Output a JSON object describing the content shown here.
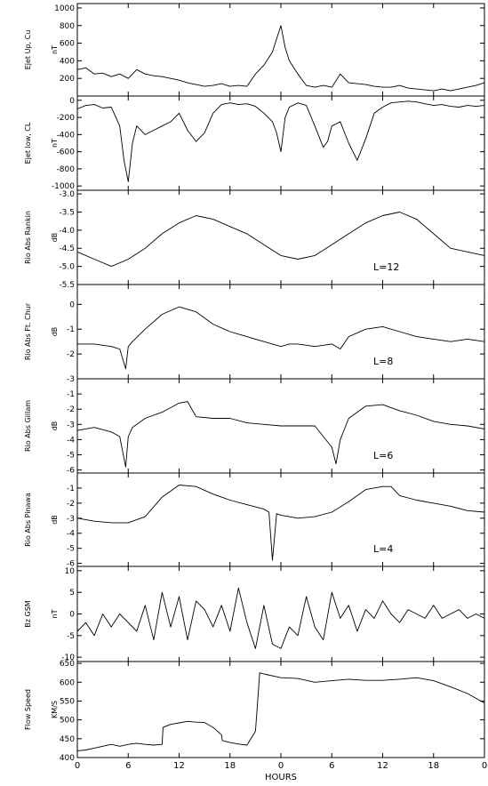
{
  "chart_data": {
    "type": "line",
    "x_axis": {
      "label": "HOURS",
      "ticks": [
        {
          "h": 0,
          "label": "0"
        },
        {
          "h": 6,
          "label": "6"
        },
        {
          "h": 12,
          "label": "12"
        },
        {
          "h": 18,
          "label": "18"
        },
        {
          "h": 24,
          "label": "0"
        },
        {
          "h": 30,
          "label": "6"
        },
        {
          "h": 36,
          "label": "12"
        },
        {
          "h": 42,
          "label": "18"
        },
        {
          "h": 48,
          "label": "0"
        }
      ],
      "range": [
        0,
        48
      ]
    },
    "panels": [
      {
        "id": "ejet-up",
        "ylabel": "Ejet Up, Cu",
        "unit": "nT",
        "ylim": [
          0,
          1050
        ],
        "yticks": [
          200,
          400,
          600,
          800,
          1000
        ],
        "annotation": "",
        "series": [
          {
            "x": [
              0,
              1,
              2,
              3,
              4,
              5,
              6,
              7,
              8,
              9,
              10,
              11,
              12,
              13,
              14,
              15,
              16,
              17,
              18,
              19,
              20,
              21,
              22,
              23,
              23.5,
              24,
              24.5,
              25,
              26,
              27,
              28,
              29,
              30,
              31,
              32,
              33,
              34,
              35,
              36,
              37,
              38,
              39,
              40,
              41,
              42,
              43,
              44,
              45,
              46,
              47,
              48
            ],
            "y": [
              300,
              320,
              250,
              260,
              220,
              250,
              200,
              300,
              250,
              230,
              220,
              200,
              180,
              150,
              130,
              110,
              120,
              140,
              110,
              120,
              110,
              250,
              350,
              500,
              650,
              800,
              550,
              400,
              250,
              120,
              100,
              120,
              100,
              250,
              150,
              140,
              130,
              110,
              100,
              100,
              120,
              90,
              80,
              70,
              60,
              80,
              60,
              80,
              100,
              120,
              150
            ]
          }
        ]
      },
      {
        "id": "ejet-low",
        "ylabel": "Ejet low, CL",
        "unit": "nT",
        "ylim": [
          -1050,
          50
        ],
        "yticks": [
          0,
          -200,
          -400,
          -600,
          -800,
          -1000
        ],
        "annotation": "",
        "series": [
          {
            "x": [
              0,
              1,
              2,
              3,
              4,
              5,
              5.5,
              6,
              6.5,
              7,
              8,
              9,
              10,
              11,
              12,
              13,
              14,
              15,
              16,
              17,
              18,
              19,
              20,
              21,
              22,
              23,
              23.5,
              24,
              24.5,
              25,
              26,
              27,
              28,
              29,
              29.5,
              30,
              31,
              32,
              33,
              34,
              35,
              36,
              37,
              38,
              39,
              40,
              41,
              42,
              43,
              44,
              45,
              46,
              47,
              48
            ],
            "y": [
              -100,
              -60,
              -50,
              -90,
              -80,
              -300,
              -700,
              -950,
              -500,
              -300,
              -400,
              -350,
              -300,
              -250,
              -150,
              -350,
              -480,
              -380,
              -150,
              -50,
              -30,
              -50,
              -40,
              -70,
              -150,
              -250,
              -380,
              -600,
              -200,
              -80,
              -30,
              -60,
              -300,
              -550,
              -480,
              -300,
              -250,
              -500,
              -700,
              -450,
              -150,
              -80,
              -30,
              -20,
              -10,
              -20,
              -40,
              -60,
              -50,
              -70,
              -80,
              -60,
              -70,
              -60
            ]
          }
        ]
      },
      {
        "id": "rio-rankin",
        "ylabel": "Rio Abs Rankin",
        "unit": "dB",
        "ylim": [
          -5.5,
          -2.9
        ],
        "yticks": [
          -3.0,
          -3.5,
          -4.0,
          -4.5,
          -5.0,
          -5.5
        ],
        "tick_labels": [
          "-3.0",
          "-3.5",
          "-4.0",
          "-4.5",
          "-5.0",
          "-5.5"
        ],
        "annotation": "L=12",
        "series": [
          {
            "x": [
              0,
              2,
              4,
              6,
              8,
              10,
              12,
              14,
              16,
              18,
              20,
              22,
              24,
              26,
              28,
              30,
              32,
              34,
              36,
              38,
              40,
              42,
              44,
              46,
              48
            ],
            "y": [
              -4.6,
              -4.8,
              -5.0,
              -4.8,
              -4.5,
              -4.1,
              -3.8,
              -3.6,
              -3.7,
              -3.9,
              -4.1,
              -4.4,
              -4.7,
              -4.8,
              -4.7,
              -4.4,
              -4.1,
              -3.8,
              -3.6,
              -3.5,
              -3.7,
              -4.1,
              -4.5,
              -4.6,
              -4.7
            ]
          }
        ]
      },
      {
        "id": "rio-churchill",
        "ylabel": "Rio Abs Ft. Chur",
        "unit": "dB",
        "ylim": [
          -3,
          0.8
        ],
        "yticks": [
          0,
          -1,
          -2,
          -3
        ],
        "annotation": "L=8",
        "series": [
          {
            "x": [
              0,
              2,
              4,
              5,
              5.7,
              6,
              6.5,
              8,
              10,
              12,
              14,
              16,
              18,
              19,
              20,
              21,
              22,
              23,
              24,
              25,
              26,
              28,
              30,
              31,
              32,
              34,
              36,
              38,
              40,
              42,
              44,
              46,
              48
            ],
            "y": [
              -1.6,
              -1.6,
              -1.7,
              -1.8,
              -2.6,
              -1.7,
              -1.5,
              -1.0,
              -0.4,
              -0.1,
              -0.3,
              -0.8,
              -1.1,
              -1.2,
              -1.3,
              -1.4,
              -1.5,
              -1.6,
              -1.7,
              -1.6,
              -1.6,
              -1.7,
              -1.6,
              -1.8,
              -1.3,
              -1.0,
              -0.9,
              -1.1,
              -1.3,
              -1.4,
              -1.5,
              -1.4,
              -1.5
            ]
          }
        ]
      },
      {
        "id": "rio-gillam",
        "ylabel": "Rio Abs Gillam",
        "unit": "dB",
        "ylim": [
          -6.2,
          0
        ],
        "yticks": [
          -1,
          -2,
          -3,
          -4,
          -5,
          -6
        ],
        "annotation": "L=6",
        "series": [
          {
            "x": [
              0,
              2,
              4,
              5,
              5.7,
              6,
              6.5,
              8,
              10,
              12,
              13,
              14,
              16,
              18,
              20,
              22,
              24,
              26,
              28,
              29,
              30,
              30.5,
              31,
              32,
              34,
              36,
              38,
              40,
              42,
              44,
              46,
              48
            ],
            "y": [
              -3.4,
              -3.2,
              -3.5,
              -3.8,
              -5.8,
              -3.8,
              -3.2,
              -2.6,
              -2.2,
              -1.6,
              -1.5,
              -2.5,
              -2.6,
              -2.6,
              -2.9,
              -3.0,
              -3.1,
              -3.1,
              -3.1,
              -3.8,
              -4.5,
              -5.6,
              -4.0,
              -2.6,
              -1.8,
              -1.7,
              -2.1,
              -2.4,
              -2.8,
              -3.0,
              -3.1,
              -3.3
            ]
          }
        ]
      },
      {
        "id": "rio-pinawa",
        "ylabel": "Rio Abs Pinawa",
        "unit": "dB",
        "ylim": [
          -6.2,
          0
        ],
        "yticks": [
          -1,
          -2,
          -3,
          -4,
          -5,
          -6
        ],
        "annotation": "L=4",
        "series": [
          {
            "x": [
              0,
              2,
              4,
              6,
              8,
              10,
              12,
              14,
              16,
              18,
              20,
              22,
              22.6,
              23,
              23.5,
              24,
              26,
              28,
              30,
              32,
              34,
              36,
              37,
              38,
              40,
              42,
              44,
              46,
              48
            ],
            "y": [
              -3.0,
              -3.2,
              -3.3,
              -3.3,
              -2.9,
              -1.6,
              -0.8,
              -0.9,
              -1.4,
              -1.8,
              -2.1,
              -2.4,
              -2.6,
              -5.8,
              -2.7,
              -2.8,
              -3.0,
              -2.9,
              -2.6,
              -1.9,
              -1.1,
              -0.9,
              -0.9,
              -1.5,
              -1.8,
              -2.0,
              -2.2,
              -2.5,
              -2.6
            ]
          }
        ]
      },
      {
        "id": "bz-gsm",
        "ylabel": "Bz GSM",
        "unit": "nT",
        "ylim": [
          -11,
          11
        ],
        "yticks": [
          10,
          5,
          0,
          -5,
          -10
        ],
        "annotation": "",
        "series": [
          {
            "x": [
              0,
              1,
              2,
              3,
              4,
              5,
              6,
              7,
              8,
              9,
              10,
              11,
              12,
              13,
              14,
              15,
              16,
              17,
              18,
              19,
              20,
              21,
              22,
              23,
              24,
              25,
              26,
              27,
              28,
              29,
              30,
              31,
              32,
              33,
              34,
              35,
              36,
              37,
              38,
              39,
              40,
              41,
              42,
              43,
              44,
              45,
              46,
              47,
              48
            ],
            "y": [
              -4,
              -2,
              -5,
              0,
              -3,
              0,
              -2,
              -4,
              2,
              -6,
              5,
              -3,
              4,
              -6,
              3,
              1,
              -3,
              2,
              -4,
              6,
              -2,
              -8,
              2,
              -7,
              -8,
              -3,
              -5,
              4,
              -3,
              -6,
              5,
              -1,
              2,
              -4,
              1,
              -1,
              3,
              0,
              -2,
              1,
              0,
              -1,
              2,
              -1,
              0,
              1,
              -1,
              0,
              -1
            ]
          }
        ]
      },
      {
        "id": "flow-speed",
        "ylabel": "Flow Speed",
        "unit": "KM/S",
        "ylim": [
          400,
          655
        ],
        "yticks": [
          400,
          450,
          500,
          550,
          600,
          650
        ],
        "annotation": "",
        "series": [
          {
            "x": [
              0,
              1,
              2,
              3,
              4,
              5,
              6,
              7,
              8,
              9,
              10,
              10.1,
              11,
              12,
              13,
              14,
              15,
              16,
              17,
              17.1,
              18,
              19,
              20,
              21,
              21.3,
              21.5,
              22,
              24,
              26,
              28,
              30,
              32,
              34,
              36,
              38,
              40,
              42,
              44,
              46,
              48
            ],
            "y": [
              418,
              420,
              425,
              430,
              435,
              430,
              435,
              438,
              435,
              433,
              435,
              480,
              488,
              492,
              496,
              494,
              493,
              480,
              460,
              445,
              440,
              436,
              433,
              470,
              560,
              625,
              622,
              612,
              610,
              600,
              604,
              608,
              605,
              605,
              608,
              612,
              604,
              588,
              570,
              545
            ]
          }
        ]
      }
    ]
  }
}
